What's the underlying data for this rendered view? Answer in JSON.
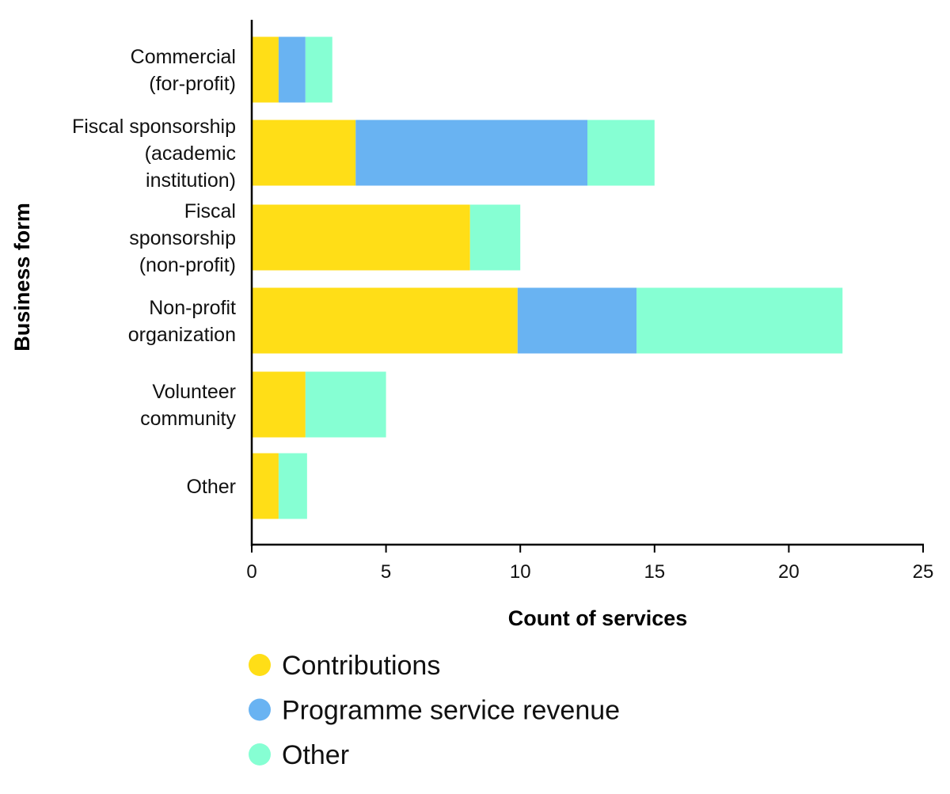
{
  "chart_data": {
    "type": "bar",
    "orientation": "horizontal",
    "stacked": true,
    "categories": [
      [
        "Commercial",
        "(for-profit)"
      ],
      [
        "Fiscal sponsorship",
        "(academic",
        "institution)"
      ],
      [
        "Fiscal",
        "sponsorship",
        "(non-profit)"
      ],
      [
        "Non-profit",
        "organization"
      ],
      [
        "Volunteer",
        "community"
      ],
      [
        "Other"
      ]
    ],
    "series": [
      {
        "name": "Contributions",
        "color": "#FFDE17",
        "values": [
          1,
          3.87,
          8.13,
          9.9,
          2,
          1
        ]
      },
      {
        "name": "Programme service revenue",
        "color": "#69B3F2",
        "values": [
          1,
          8.63,
          0,
          4.43,
          0,
          0
        ]
      },
      {
        "name": "Other",
        "color": "#86FFD3",
        "values": [
          1,
          2.5,
          1.87,
          7.67,
          3,
          1.06
        ]
      }
    ],
    "xlabel": "Count of services",
    "ylabel": "Business form",
    "xlim": [
      0,
      25
    ],
    "xticks": [
      0,
      5,
      10,
      15,
      20,
      25
    ],
    "grid": false,
    "legend_position": "bottom"
  }
}
